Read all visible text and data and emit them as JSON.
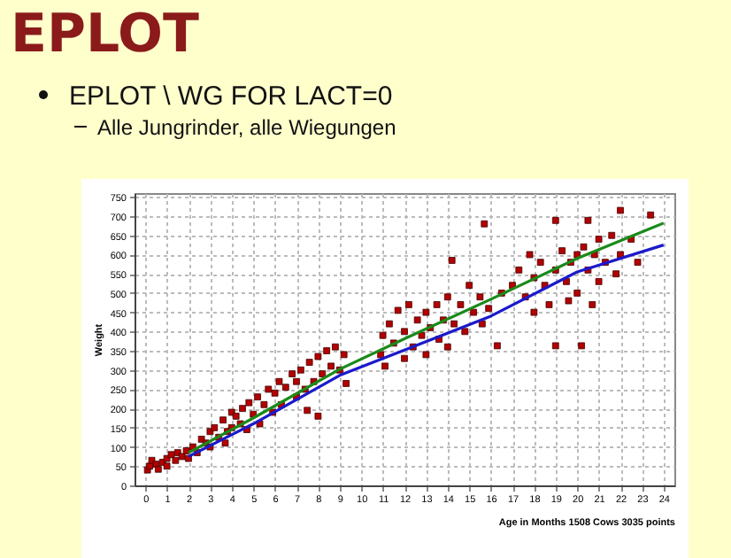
{
  "chart_data": {
    "type": "scatter",
    "title": "EPLOT",
    "subtitle": "EPLOT \\ WG FOR LACT=0",
    "annotations": [
      "Alle Jungrinder, alle Wiegungen"
    ],
    "xlabel": "Age in Months 1508 Cows 3035 points",
    "ylabel": "Weight",
    "xlim": [
      -0.5,
      24.5
    ],
    "xticks": [
      0,
      1,
      2,
      3,
      4,
      5,
      6,
      7,
      8,
      9,
      10,
      11,
      12,
      13,
      14,
      15,
      16,
      17,
      18,
      19,
      20,
      21,
      22,
      23,
      24
    ],
    "ylim": [
      0,
      760
    ],
    "yticks": [
      0,
      50,
      100,
      150,
      200,
      250,
      300,
      350,
      400,
      450,
      500,
      550,
      600,
      650,
      700,
      750
    ],
    "grid": true,
    "line_style": "solid",
    "series": [
      {
        "type": "scatter",
        "marker": "square",
        "color": "#b30000",
        "x": [
          0.1,
          0.2,
          0.3,
          0.5,
          0.6,
          0.8,
          1,
          1,
          1.2,
          1.4,
          1.5,
          1.7,
          1.9,
          2,
          2.2,
          2.4,
          2.6,
          2.8,
          3,
          3,
          3.2,
          3.4,
          3.6,
          3.8,
          4,
          4,
          3.7,
          4.2,
          4.4,
          4.5,
          4.7,
          4.8,
          5,
          5.2,
          5.3,
          5.5,
          5.7,
          5.9,
          6,
          6.2,
          6.3,
          6.5,
          6.8,
          7,
          7,
          7.2,
          7.4,
          7.6,
          7.8,
          8,
          8,
          8.2,
          8.4,
          8.6,
          8.8,
          9,
          9.2,
          9.3,
          7.5,
          10.9,
          11,
          11.1,
          11.3,
          11.5,
          11.7,
          12,
          12,
          12.2,
          12.4,
          12.6,
          12.8,
          13,
          13,
          13.2,
          13.5,
          13.6,
          13.8,
          14,
          14,
          14.2,
          14.3,
          14.6,
          14.8,
          15,
          15.2,
          15.5,
          15.6,
          15.7,
          15.9,
          16.3,
          16.5,
          17,
          17.3,
          17.6,
          17.8,
          18,
          18,
          18.3,
          18.5,
          18.7,
          19,
          19,
          19,
          19.3,
          19.5,
          19.7,
          20,
          20,
          20.2,
          20.3,
          20.5,
          20.5,
          20.8,
          21,
          21,
          21.3,
          21.6,
          21.8,
          22,
          22,
          22.5,
          22.8,
          23.4,
          20.7,
          19.6
        ],
        "values": [
          40,
          50,
          65,
          55,
          42,
          60,
          70,
          50,
          80,
          65,
          85,
          75,
          90,
          70,
          100,
          85,
          120,
          110,
          140,
          100,
          150,
          125,
          170,
          140,
          190,
          150,
          110,
          180,
          160,
          200,
          145,
          215,
          185,
          230,
          160,
          210,
          250,
          190,
          240,
          270,
          210,
          255,
          290,
          230,
          270,
          300,
          250,
          320,
          270,
          335,
          180,
          290,
          350,
          310,
          360,
          300,
          340,
          265,
          195,
          340,
          390,
          310,
          420,
          370,
          455,
          400,
          330,
          470,
          360,
          430,
          390,
          450,
          340,
          410,
          470,
          380,
          430,
          490,
          360,
          585,
          420,
          470,
          400,
          520,
          450,
          490,
          420,
          680,
          460,
          363,
          500,
          520,
          560,
          490,
          600,
          540,
          450,
          580,
          520,
          470,
          689,
          363,
          560,
          610,
          530,
          580,
          600,
          500,
          363,
          620,
          689,
          560,
          600,
          640,
          530,
          580,
          650,
          550,
          715,
          600,
          640,
          580,
          703,
          470,
          480
        ]
      },
      {
        "type": "line",
        "marker": "none",
        "color": "#1a8a1a",
        "x": [
          2,
          5,
          9,
          12,
          16,
          20,
          24
        ],
        "values": [
          85,
          175,
          302,
          381,
          484,
          590,
          682
        ]
      },
      {
        "type": "line",
        "marker": "none",
        "color": "#1a1acc",
        "x": [
          2,
          5,
          9,
          12,
          16,
          20,
          24
        ],
        "values": [
          75,
          160,
          286,
          352,
          440,
          555,
          625
        ]
      }
    ]
  }
}
